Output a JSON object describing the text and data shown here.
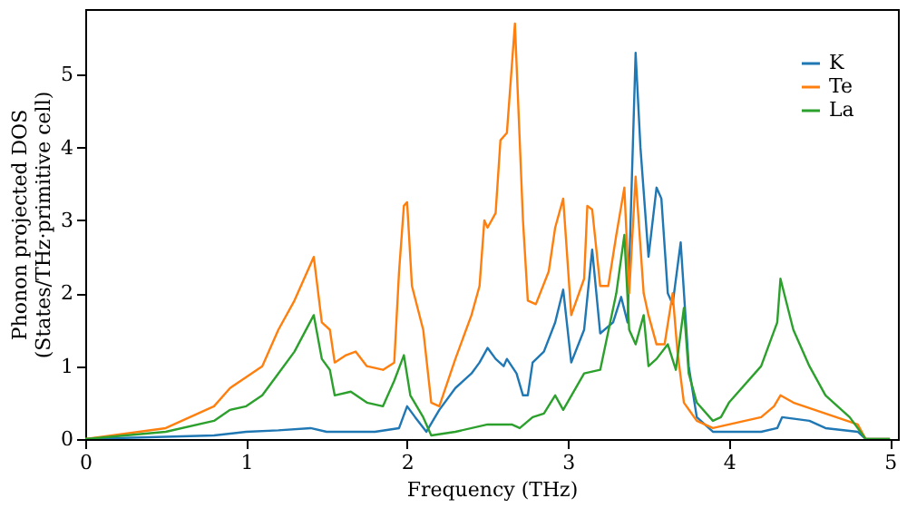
{
  "chart_data": {
    "type": "line",
    "xlabel": "Frequency (THz)",
    "ylabel": "Phonon projected DOS\n(States/THz·primitive cell)",
    "xlim": [
      0,
      5.05
    ],
    "ylim": [
      0,
      5.9
    ],
    "xticks": [
      0,
      1,
      2,
      3,
      4,
      5
    ],
    "yticks": [
      0,
      1,
      2,
      3,
      4,
      5
    ],
    "grid": false,
    "legend": "top right",
    "series": [
      {
        "name": "K",
        "color": "#1f77b4",
        "x": [
          0,
          0.8,
          1.0,
          1.2,
          1.4,
          1.5,
          1.8,
          1.95,
          2.0,
          2.05,
          2.12,
          2.2,
          2.3,
          2.4,
          2.45,
          2.5,
          2.55,
          2.6,
          2.62,
          2.68,
          2.72,
          2.75,
          2.78,
          2.85,
          2.92,
          2.97,
          3.02,
          3.1,
          3.15,
          3.2,
          3.28,
          3.33,
          3.37,
          3.42,
          3.45,
          3.5,
          3.55,
          3.58,
          3.62,
          3.65,
          3.7,
          3.75,
          3.8,
          3.9,
          4.2,
          4.3,
          4.33,
          4.5,
          4.6,
          4.8,
          4.85,
          5.0
        ],
        "values": [
          0,
          0.05,
          0.1,
          0.12,
          0.15,
          0.1,
          0.1,
          0.15,
          0.45,
          0.3,
          0.1,
          0.4,
          0.7,
          0.9,
          1.05,
          1.25,
          1.1,
          1.0,
          1.1,
          0.9,
          0.6,
          0.6,
          1.05,
          1.2,
          1.6,
          2.05,
          1.05,
          1.5,
          2.6,
          1.45,
          1.6,
          1.95,
          1.6,
          5.3,
          4.0,
          2.5,
          3.45,
          3.3,
          2.0,
          1.85,
          2.7,
          1.0,
          0.3,
          0.1,
          0.1,
          0.15,
          0.3,
          0.25,
          0.15,
          0.1,
          0,
          0
        ]
      },
      {
        "name": "Te",
        "color": "#ff7f0e",
        "x": [
          0,
          0.5,
          0.8,
          0.9,
          1.0,
          1.1,
          1.2,
          1.3,
          1.4,
          1.42,
          1.47,
          1.52,
          1.55,
          1.62,
          1.68,
          1.75,
          1.85,
          1.92,
          1.95,
          1.98,
          2.0,
          2.03,
          2.1,
          2.15,
          2.2,
          2.3,
          2.4,
          2.45,
          2.48,
          2.5,
          2.55,
          2.58,
          2.62,
          2.67,
          2.72,
          2.75,
          2.8,
          2.88,
          2.92,
          2.97,
          3.02,
          3.1,
          3.12,
          3.15,
          3.2,
          3.25,
          3.3,
          3.35,
          3.38,
          3.42,
          3.47,
          3.5,
          3.55,
          3.6,
          3.65,
          3.68,
          3.72,
          3.8,
          3.9,
          4.0,
          4.2,
          4.28,
          4.32,
          4.4,
          4.6,
          4.8,
          4.85,
          5.0
        ],
        "values": [
          0,
          0.15,
          0.45,
          0.7,
          0.85,
          1.0,
          1.5,
          1.9,
          2.4,
          2.5,
          1.6,
          1.5,
          1.05,
          1.15,
          1.2,
          1.0,
          0.95,
          1.05,
          2.3,
          3.2,
          3.25,
          2.1,
          1.5,
          0.5,
          0.45,
          1.1,
          1.7,
          2.1,
          3.0,
          2.9,
          3.1,
          4.1,
          4.2,
          5.7,
          3.0,
          1.9,
          1.85,
          2.3,
          2.9,
          3.3,
          1.7,
          2.2,
          3.2,
          3.15,
          2.1,
          2.1,
          2.8,
          3.45,
          2.0,
          3.6,
          2.0,
          1.7,
          1.3,
          1.3,
          2.0,
          1.2,
          0.5,
          0.25,
          0.15,
          0.2,
          0.3,
          0.45,
          0.6,
          0.5,
          0.35,
          0.2,
          0,
          0
        ]
      },
      {
        "name": "La",
        "color": "#2ca02c",
        "x": [
          0,
          0.5,
          0.8,
          0.9,
          1.0,
          1.1,
          1.2,
          1.3,
          1.42,
          1.47,
          1.52,
          1.55,
          1.65,
          1.75,
          1.85,
          1.92,
          1.98,
          2.02,
          2.1,
          2.15,
          2.3,
          2.5,
          2.65,
          2.7,
          2.78,
          2.85,
          2.92,
          2.97,
          3.1,
          3.2,
          3.3,
          3.35,
          3.38,
          3.42,
          3.47,
          3.5,
          3.55,
          3.62,
          3.67,
          3.72,
          3.75,
          3.8,
          3.9,
          3.95,
          4.0,
          4.2,
          4.3,
          4.32,
          4.4,
          4.5,
          4.6,
          4.75,
          4.85,
          5.0
        ],
        "values": [
          0,
          0.1,
          0.25,
          0.4,
          0.45,
          0.6,
          0.9,
          1.2,
          1.7,
          1.1,
          0.95,
          0.6,
          0.65,
          0.5,
          0.45,
          0.8,
          1.15,
          0.6,
          0.3,
          0.05,
          0.1,
          0.2,
          0.2,
          0.15,
          0.3,
          0.35,
          0.6,
          0.4,
          0.9,
          0.95,
          2.0,
          2.8,
          1.5,
          1.3,
          1.7,
          1.0,
          1.1,
          1.3,
          0.95,
          1.8,
          0.9,
          0.5,
          0.25,
          0.3,
          0.5,
          1.0,
          1.6,
          2.2,
          1.5,
          1.0,
          0.6,
          0.3,
          0,
          0
        ]
      }
    ]
  }
}
